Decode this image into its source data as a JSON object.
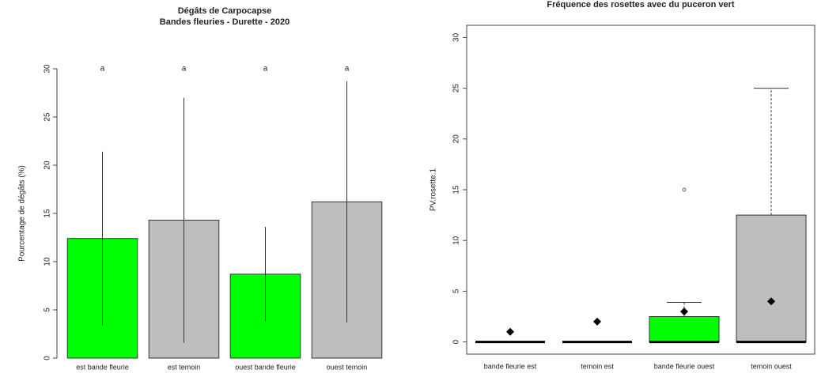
{
  "chart_data": [
    {
      "type": "bar",
      "title": "Dégâts de Carpocapse",
      "subtitle": "Bandes fleuries - Durette - 2020",
      "y_label": "Pourcentage de dégâts (%)",
      "categories": [
        "est bande fleurie",
        "est temoin",
        "ouest bande fleurie",
        "ouest temoin"
      ],
      "values": [
        12.4,
        14.3,
        8.7,
        16.2
      ],
      "errors": [
        9,
        12.7,
        4.9,
        12.5
      ],
      "letters": [
        "a",
        "a",
        "a",
        "a"
      ],
      "colors": [
        "#00ff00",
        "#bebebe",
        "#00ff00",
        "#bebebe"
      ],
      "ylim": [
        0,
        30
      ],
      "yticks": [
        0,
        5,
        10,
        15,
        20,
        25,
        30
      ]
    },
    {
      "type": "box",
      "title": "Fréquence des rosettes avec du puceron vert",
      "y_label": "PV.rosette.1",
      "categories": [
        "bande fleurie est",
        "temoin est",
        "bande fleurie ouest",
        "temoin ouest"
      ],
      "min": [
        0,
        0,
        0,
        0
      ],
      "q1": [
        0,
        0,
        0,
        0
      ],
      "median": [
        0,
        0,
        0,
        0
      ],
      "q3": [
        0,
        0,
        2.5,
        12.5
      ],
      "max": [
        0,
        0,
        3.9,
        25
      ],
      "means": [
        1,
        2,
        3,
        4
      ],
      "outliers": [
        [],
        [],
        [
          15
        ],
        []
      ],
      "colors": [
        "#ffffff",
        "#ffffff",
        "#00ff00",
        "#bebebe"
      ],
      "ylim": [
        -1.2,
        31.2
      ],
      "yticks": [
        0,
        5,
        10,
        15,
        20,
        25,
        30
      ]
    }
  ]
}
